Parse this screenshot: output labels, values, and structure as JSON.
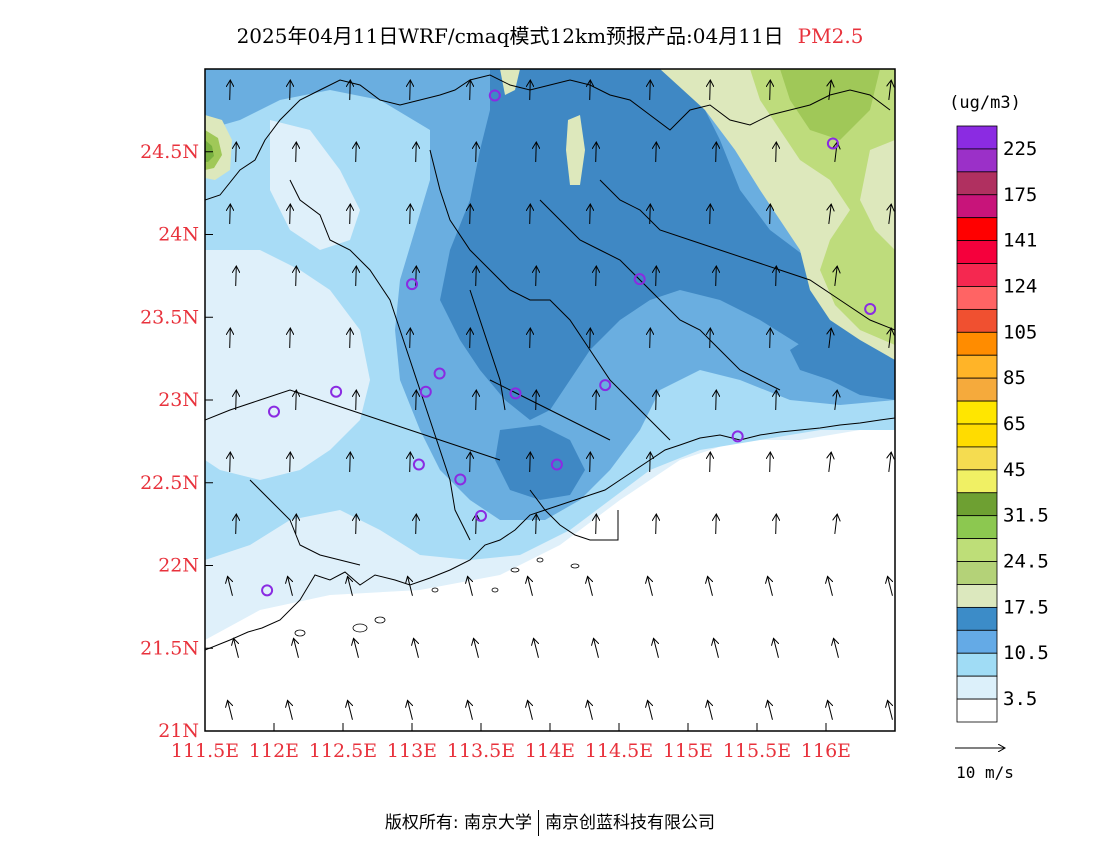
{
  "title": {
    "main": "2025年04月11日WRF/cmaq模式12km预报产品:04月11日",
    "pollutant": "PM2.5"
  },
  "colors": {
    "lat_label": "#e8323c",
    "lon_label": "#e8323c",
    "station": "#8a2be2",
    "level_0": "#ffffff",
    "level_1": "#dff0fa",
    "level_2": "#a8dcf6",
    "level_3": "#6aaee0",
    "level_4": "#3f88c4",
    "level_5": "#dde8bc",
    "level_6": "#bedc7c",
    "level_7": "#a0c858",
    "level_8": "#78b040"
  },
  "map": {
    "lat_ticks": [
      "24.5N",
      "24N",
      "23.5N",
      "23N",
      "22.5N",
      "22N",
      "21.5N",
      "21N"
    ],
    "lon_ticks": [
      "111.5E",
      "112E",
      "112.5E",
      "113E",
      "113.5E",
      "114E",
      "114.5E",
      "115E",
      "115.5E",
      "116E"
    ],
    "lon_range": [
      111.5,
      116.5
    ],
    "lat_range": [
      21.0,
      25.0
    ],
    "stations": [
      {
        "lon": 113.6,
        "lat": 24.84
      },
      {
        "lon": 116.05,
        "lat": 24.55
      },
      {
        "lon": 113.0,
        "lat": 23.7
      },
      {
        "lon": 114.65,
        "lat": 23.73
      },
      {
        "lon": 116.32,
        "lat": 23.55
      },
      {
        "lon": 113.2,
        "lat": 23.16
      },
      {
        "lon": 113.1,
        "lat": 23.05
      },
      {
        "lon": 113.75,
        "lat": 23.04
      },
      {
        "lon": 114.4,
        "lat": 23.09
      },
      {
        "lon": 112.45,
        "lat": 23.05
      },
      {
        "lon": 112.0,
        "lat": 22.93
      },
      {
        "lon": 115.36,
        "lat": 22.78
      },
      {
        "lon": 113.05,
        "lat": 22.61
      },
      {
        "lon": 113.35,
        "lat": 22.52
      },
      {
        "lon": 114.05,
        "lat": 22.61
      },
      {
        "lon": 113.5,
        "lat": 22.3
      },
      {
        "lon": 111.95,
        "lat": 21.85
      }
    ]
  },
  "legend": {
    "unit": "(ug/m3)",
    "labels": [
      "225",
      "175",
      "141",
      "124",
      "105",
      "85",
      "65",
      "45",
      "31.5",
      "24.5",
      "17.5",
      "10.5",
      "3.5"
    ],
    "bins": [
      {
        "color": "#8b2be2"
      },
      {
        "color": "#9b30c8"
      },
      {
        "color": "#b03060"
      },
      {
        "color": "#c8147a"
      },
      {
        "color": "#ff0000"
      },
      {
        "color": "#f5003c"
      },
      {
        "color": "#f52850"
      },
      {
        "color": "#ff6464"
      },
      {
        "color": "#f05030"
      },
      {
        "color": "#ff8c00"
      },
      {
        "color": "#ffb428"
      },
      {
        "color": "#f5aa3c"
      },
      {
        "color": "#ffe600"
      },
      {
        "color": "#ffdc00"
      },
      {
        "color": "#f5dc50"
      },
      {
        "color": "#f0f064"
      },
      {
        "color": "#6ea032"
      },
      {
        "color": "#8cc850"
      },
      {
        "color": "#bede78"
      },
      {
        "color": "#b4d278"
      },
      {
        "color": "#dce8be"
      },
      {
        "color": "#3c8cc8"
      },
      {
        "color": "#64aae6"
      },
      {
        "color": "#a0dcf5"
      },
      {
        "color": "#dcf0fa"
      },
      {
        "color": "#ffffff"
      }
    ]
  },
  "wind_scale": {
    "label": "10 m/s"
  },
  "copyright": {
    "left": "版权所有: 南京大学",
    "right": "南京创蓝科技有限公司"
  }
}
